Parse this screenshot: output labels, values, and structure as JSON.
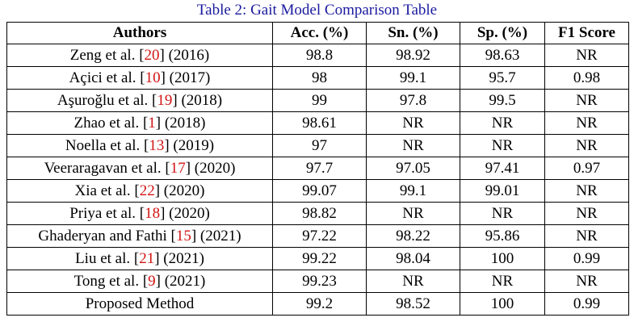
{
  "caption": "Table 2: Gait Model Comparison Table",
  "headers": [
    "Authors",
    "Acc. (%)",
    "Sn. (%)",
    "Sp. (%)",
    "F1 Score"
  ],
  "rows": [
    {
      "pre": "Zeng et al. [",
      "ref": "20",
      "post": "] (2016)",
      "acc": "98.8",
      "sn": "98.92",
      "sp": "98.63",
      "f1": "NR"
    },
    {
      "pre": "Açici et al. [",
      "ref": "10",
      "post": "] (2017)",
      "acc": "98",
      "sn": "99.1",
      "sp": "95.7",
      "f1": "0.98"
    },
    {
      "pre": "Aşuroğlu et al. [",
      "ref": "19",
      "post": "] (2018)",
      "acc": "99",
      "sn": "97.8",
      "sp": "99.5",
      "f1": "NR"
    },
    {
      "pre": "Zhao et al. [",
      "ref": "1",
      "post": "] (2018)",
      "acc": "98.61",
      "sn": "NR",
      "sp": "NR",
      "f1": "NR"
    },
    {
      "pre": "Noella et al. [",
      "ref": "13",
      "post": "] (2019)",
      "acc": "97",
      "sn": "NR",
      "sp": "NR",
      "f1": "NR"
    },
    {
      "pre": "Veeraragavan et al. [",
      "ref": "17",
      "post": "] (2020)",
      "acc": "97.7",
      "sn": "97.05",
      "sp": "97.41",
      "f1": "0.97"
    },
    {
      "pre": "Xia et al. [",
      "ref": "22",
      "post": "] (2020)",
      "acc": "99.07",
      "sn": "99.1",
      "sp": "99.01",
      "f1": "NR"
    },
    {
      "pre": "Priya et al. [",
      "ref": "18",
      "post": "] (2020)",
      "acc": "98.82",
      "sn": "NR",
      "sp": "NR",
      "f1": "NR"
    },
    {
      "pre": "Ghaderyan and Fathi [",
      "ref": "15",
      "post": "] (2021)",
      "acc": "97.22",
      "sn": "98.22",
      "sp": "95.86",
      "f1": "NR"
    },
    {
      "pre": "Liu et al. [",
      "ref": "21",
      "post": "] (2021)",
      "acc": "99.22",
      "sn": "98.04",
      "sp": "100",
      "f1": "0.99"
    },
    {
      "pre": "Tong et al. [",
      "ref": "9",
      "post": "] (2021)",
      "acc": "99.23",
      "sn": "NR",
      "sp": "NR",
      "f1": "NR"
    },
    {
      "pre": "Proposed Method",
      "ref": "",
      "post": "",
      "acc": "99.2",
      "sn": "98.52",
      "sp": "100",
      "f1": "0.99"
    }
  ]
}
